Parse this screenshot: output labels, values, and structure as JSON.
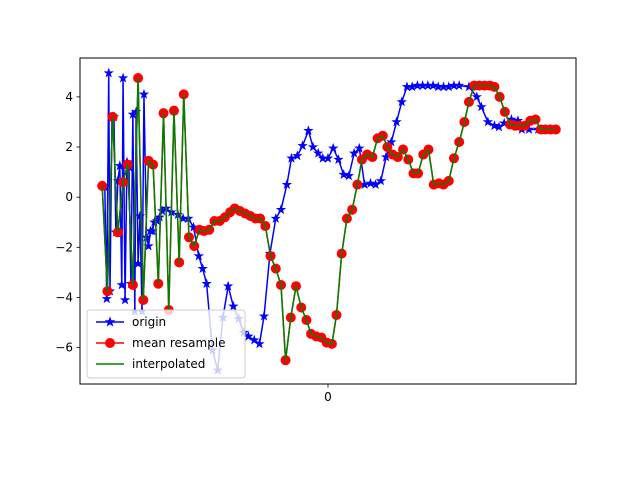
{
  "chart_data": {
    "type": "line",
    "title": "",
    "xlabel": "",
    "ylabel": "",
    "x_tick_labels": [
      {
        "x": 0.0,
        "label": "0"
      }
    ],
    "y_ticks": [
      -6,
      -4,
      -2,
      0,
      2,
      4
    ],
    "y_tick_labels": [
      "−6",
      "−4",
      "−2",
      "0",
      "2",
      "4"
    ],
    "xlim": [
      -0.00038,
      0.00038
    ],
    "ylim": [
      -7.45,
      5.55
    ],
    "grid": false,
    "legend_position": "lower-left",
    "colors": {
      "origin": "#0000ff",
      "mean_resample": "#ff0000",
      "mean_resample_edge": "#ff0000",
      "interpolated": "#008000"
    },
    "series": [
      {
        "name": "origin",
        "marker": "star",
        "x": [
          -0.000342,
          -0.000339,
          -0.000336,
          -0.000334,
          -0.000331,
          -0.000328,
          -0.000325,
          -0.000322,
          -0.000319,
          -0.000316,
          -0.000314,
          -0.000311,
          -0.000308,
          -0.000305,
          -0.000302,
          -0.000299,
          -0.000296,
          -0.000294,
          -0.000291,
          -0.000288,
          -0.000285,
          -0.000282,
          -0.000278,
          -0.000275,
          -0.000272,
          -0.000269,
          -0.000266,
          -0.000262,
          -0.000258,
          -0.000254,
          -0.000248,
          -0.00024,
          -0.00023,
          -0.000222,
          -0.000214,
          -0.000206,
          -0.000198,
          -0.000192,
          -0.000186,
          -0.000177,
          -0.000169,
          -0.000161,
          -0.000153,
          -0.000145,
          -0.000137,
          -0.000129,
          -0.000122,
          -0.000113,
          -0.000105,
          -9.8e-05,
          -8.9e-05,
          -8e-05,
          -7.2e-05,
          -6.3e-05,
          -5.6e-05,
          -4.7e-05,
          -3.9e-05,
          -3e-05,
          -2.3e-05,
          -1.5e-05,
          -8e-06,
          0.0,
          8e-06,
          1.6e-05,
          2.4e-05,
          3.2e-05,
          4e-05,
          4.8e-05,
          5.6e-05,
          6.5e-05,
          7.3e-05,
          8.1e-05,
          8.9e-05,
          9.7e-05,
          0.000105,
          0.000113,
          0.000121,
          0.000129,
          0.000137,
          0.000145,
          0.000153,
          0.000161,
          0.000169,
          0.000177,
          0.000185,
          0.000193,
          0.000201,
          0.000216,
          0.000228,
          0.000235,
          0.000245,
          0.000255,
          0.000262,
          0.00027,
          0.000281,
          0.000291,
          0.000297,
          0.000308,
          0.000322,
          0.000333,
          0.00034,
          0.000348
        ],
        "y": [
          0.4,
          -4.05,
          4.95,
          -3.75,
          3.2,
          3.2,
          -1.4,
          0.65,
          1.25,
          -3.5,
          4.75,
          -4.1,
          1.4,
          1.2,
          -3.45,
          3.3,
          -4.55,
          3.4,
          -2.65,
          -0.75,
          -4.55,
          4.1,
          -1.6,
          -1.95,
          -1.35,
          -1.35,
          -1.0,
          -0.95,
          -0.8,
          -0.55,
          -0.45,
          -0.6,
          -0.7,
          -0.85,
          -0.85,
          -1.2,
          -2.35,
          -2.85,
          -3.45,
          -6.1,
          -6.9,
          -4.8,
          -3.55,
          -4.35,
          -4.85,
          -5.4,
          -5.55,
          -5.7,
          -5.85,
          -4.75,
          -2.25,
          -0.85,
          -0.5,
          0.5,
          1.55,
          1.65,
          2.05,
          2.65,
          2.0,
          1.75,
          1.55,
          1.55,
          1.95,
          1.5,
          0.9,
          0.85,
          1.75,
          1.95,
          0.5,
          0.55,
          0.5,
          0.65,
          1.6,
          2.2,
          3.0,
          3.8,
          4.4,
          4.4,
          4.45,
          4.45,
          4.45,
          4.45,
          4.4,
          4.4,
          4.4,
          4.45,
          4.45,
          4.4,
          4.0,
          3.6,
          3.0,
          2.85,
          2.8,
          2.95,
          3.1,
          3.05,
          2.7,
          2.7,
          2.7,
          2.7,
          2.7,
          2.7
        ]
      },
      {
        "name": "mean resample",
        "marker": "circle",
        "x": [
          -0.000346,
          -0.000338,
          -0.00033,
          -0.000322,
          -0.000314,
          -0.000307,
          -0.000299,
          -0.000291,
          -0.000283,
          -0.000275,
          -0.000268,
          -0.00026,
          -0.000252,
          -0.000244,
          -0.000236,
          -0.000228,
          -0.000221,
          -0.000213,
          -0.000205,
          -0.000197,
          -0.00019,
          -0.000182,
          -0.000174,
          -0.000166,
          -0.000158,
          -0.00015,
          -0.000143,
          -0.000135,
          -0.000127,
          -0.000119,
          -0.000111,
          -0.000104,
          -9.6e-05,
          -8.8e-05,
          -8e-05,
          -7.2e-05,
          -6.5e-05,
          -5.7e-05,
          -4.9e-05,
          -4.1e-05,
          -3.3e-05,
          -2.6e-05,
          -1.8e-05,
          -1e-05,
          -2e-06,
          6e-06,
          1.3e-05,
          2.1e-05,
          2.9e-05,
          3.7e-05,
          4.5e-05,
          5.2e-05,
          6e-05,
          6.8e-05,
          7.6e-05,
          8.4e-05,
          9.1e-05,
          9.9e-05,
          0.000107,
          0.000115,
          0.000123,
          0.000131,
          0.000138,
          0.000146,
          0.000154,
          0.000162,
          0.00017,
          0.000177,
          0.000185,
          0.000193,
          0.000201,
          0.000209,
          0.000216,
          0.000224,
          0.000232,
          0.00024,
          0.000248,
          0.000255,
          0.000263,
          0.000271,
          0.000279,
          0.000287,
          0.000294,
          0.000302,
          0.00031,
          0.000318,
          0.000326,
          0.000333,
          0.000341,
          0.000349
        ],
        "y": [
          0.45,
          -3.75,
          3.2,
          -1.4,
          0.6,
          1.3,
          -3.5,
          4.75,
          -4.1,
          1.45,
          1.3,
          -3.45,
          3.35,
          -4.5,
          3.45,
          -2.6,
          4.1,
          -1.6,
          -1.95,
          -1.3,
          -1.35,
          -1.3,
          -0.95,
          -0.95,
          -0.8,
          -0.6,
          -0.45,
          -0.55,
          -0.65,
          -0.75,
          -0.85,
          -0.85,
          -1.15,
          -2.35,
          -2.85,
          -3.5,
          -6.5,
          -4.8,
          -3.55,
          -4.4,
          -4.9,
          -5.45,
          -5.55,
          -5.6,
          -5.8,
          -5.85,
          -4.7,
          -2.25,
          -0.85,
          -0.5,
          0.5,
          1.5,
          1.7,
          1.6,
          2.35,
          2.45,
          2.0,
          1.7,
          1.6,
          1.9,
          1.5,
          0.95,
          0.95,
          1.7,
          1.9,
          0.5,
          0.55,
          0.5,
          0.65,
          1.55,
          2.2,
          3.0,
          3.8,
          4.45,
          4.45,
          4.45,
          4.45,
          4.4,
          4.0,
          3.4,
          2.9,
          2.85,
          2.85,
          2.85,
          3.05,
          3.1,
          2.7,
          2.7,
          2.7,
          2.7
        ]
      },
      {
        "name": "interpolated",
        "marker": "none",
        "x": [
          -0.000346,
          -0.000338,
          -0.00033,
          -0.000322,
          -0.000314,
          -0.000307,
          -0.000299,
          -0.000291,
          -0.000283,
          -0.000275,
          -0.000268,
          -0.00026,
          -0.000252,
          -0.000244,
          -0.000236,
          -0.000228,
          -0.000221,
          -0.000213,
          -0.000205,
          -0.000197,
          -0.00019,
          -0.000182,
          -0.000174,
          -0.000166,
          -0.000158,
          -0.00015,
          -0.000143,
          -0.000135,
          -0.000127,
          -0.000119,
          -0.000111,
          -0.000104,
          -9.6e-05,
          -8.8e-05,
          -8e-05,
          -7.2e-05,
          -6.5e-05,
          -5.7e-05,
          -4.9e-05,
          -4.1e-05,
          -3.3e-05,
          -2.6e-05,
          -1.8e-05,
          -1e-05,
          -2e-06,
          6e-06,
          1.3e-05,
          2.1e-05,
          2.9e-05,
          3.7e-05,
          4.5e-05,
          5.2e-05,
          6e-05,
          6.8e-05,
          7.6e-05,
          8.4e-05,
          9.1e-05,
          9.9e-05,
          0.000107,
          0.000115,
          0.000123,
          0.000131,
          0.000138,
          0.000146,
          0.000154,
          0.000162,
          0.00017,
          0.000177,
          0.000185,
          0.000193,
          0.000201,
          0.000209,
          0.000216,
          0.000224,
          0.000232,
          0.00024,
          0.000248,
          0.000255,
          0.000263,
          0.000271,
          0.000279,
          0.000287,
          0.000294,
          0.000302,
          0.00031,
          0.000318,
          0.000326,
          0.000333,
          0.000341,
          0.000349
        ],
        "y": [
          0.45,
          -3.75,
          3.2,
          -1.4,
          0.6,
          1.3,
          -3.5,
          4.75,
          -4.1,
          1.45,
          1.3,
          -3.45,
          3.35,
          -4.5,
          3.45,
          -2.6,
          4.1,
          -1.6,
          -1.95,
          -1.3,
          -1.35,
          -1.3,
          -0.95,
          -0.95,
          -0.8,
          -0.6,
          -0.45,
          -0.55,
          -0.65,
          -0.75,
          -0.85,
          -0.85,
          -1.15,
          -2.35,
          -2.85,
          -3.5,
          -6.5,
          -4.8,
          -3.55,
          -4.4,
          -4.9,
          -5.45,
          -5.55,
          -5.6,
          -5.8,
          -5.85,
          -4.7,
          -2.25,
          -0.85,
          -0.5,
          0.5,
          1.5,
          1.7,
          1.6,
          2.35,
          2.45,
          2.0,
          1.7,
          1.6,
          1.9,
          1.5,
          0.95,
          0.95,
          1.7,
          1.9,
          0.5,
          0.55,
          0.5,
          0.65,
          1.55,
          2.2,
          3.0,
          3.8,
          4.45,
          4.45,
          4.45,
          4.45,
          4.4,
          4.0,
          3.4,
          2.9,
          2.85,
          2.85,
          2.85,
          3.05,
          3.1,
          2.7,
          2.7,
          2.7,
          2.7
        ]
      }
    ]
  },
  "legend": {
    "items": [
      {
        "label": "origin"
      },
      {
        "label": "mean resample"
      },
      {
        "label": "interpolated"
      }
    ]
  }
}
